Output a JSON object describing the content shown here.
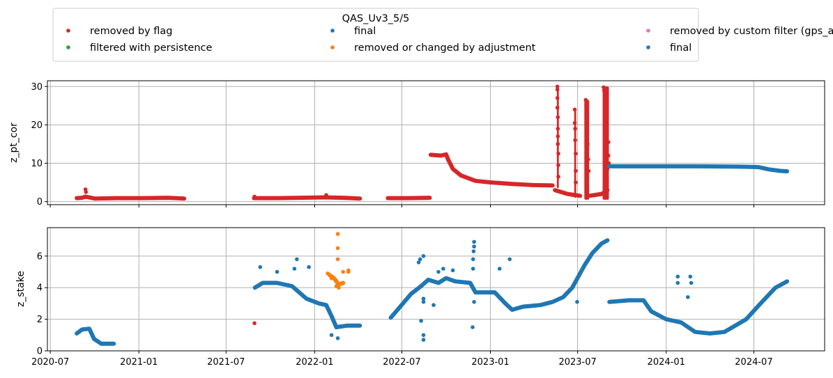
{
  "chart_data": {
    "type": "scatter",
    "legend": {
      "title": "QAS_Uv3_5/5",
      "placement": "top-center",
      "entries": [
        {
          "label": "removed by flag",
          "color": "#d62728"
        },
        {
          "label": "filtered with persistence",
          "color": "#2ca02c"
        },
        {
          "label": "final",
          "color": "#1f77b4"
        },
        {
          "label": "removed or changed by adjustment",
          "color": "#ff7f0e"
        },
        {
          "label": "removed by custom filter (gps_alt, tilt or rot)",
          "color": "#e377c2"
        },
        {
          "label": "final",
          "color": "#1f77b4"
        }
      ]
    },
    "x_axis": {
      "type": "date",
      "range": [
        "2020-06-25",
        "2024-11-25"
      ],
      "ticks": [
        "2020-07",
        "2021-01",
        "2021-07",
        "2022-01",
        "2022-07",
        "2023-01",
        "2023-07",
        "2024-01",
        "2024-07"
      ],
      "grid": true
    },
    "panels": [
      {
        "ylabel": "z_pt_cor",
        "ylim": [
          -0.8,
          31.5
        ],
        "yticks": [
          "0",
          "10",
          "20",
          "30"
        ],
        "grid": true,
        "series": [
          {
            "label_ref": "removed by flag",
            "color": "#d62728",
            "segments": [
              [
                [
                  "2020-08-25",
                  0.9
                ],
                [
                  "2020-09-05",
                  1.0
                ],
                [
                  "2020-09-12",
                  1.3
                ],
                [
                  "2020-10-01",
                  0.8
                ],
                [
                  "2020-11-15",
                  0.9
                ],
                [
                  "2021-01-10",
                  0.9
                ],
                [
                  "2021-03-01",
                  1.0
                ],
                [
                  "2021-04-05",
                  0.8
                ]
              ],
              [
                [
                  "2021-08-28",
                  0.9
                ],
                [
                  "2021-10-15",
                  0.9
                ],
                [
                  "2021-12-01",
                  1.0
                ],
                [
                  "2022-01-20",
                  1.1
                ],
                [
                  "2022-03-01",
                  1.0
                ],
                [
                  "2022-04-05",
                  0.8
                ]
              ],
              [
                [
                  "2022-06-02",
                  0.9
                ],
                [
                  "2022-07-15",
                  0.9
                ],
                [
                  "2022-08-28",
                  1.0
                ]
              ],
              [
                [
                  "2022-08-30",
                  12.2
                ],
                [
                  "2022-09-20",
                  12.0
                ],
                [
                  "2022-10-01",
                  12.3
                ],
                [
                  "2022-10-05",
                  11.0
                ],
                [
                  "2022-10-15",
                  8.5
                ],
                [
                  "2022-11-01",
                  6.8
                ],
                [
                  "2022-12-01",
                  5.4
                ],
                [
                  "2023-01-01",
                  5.0
                ],
                [
                  "2023-02-15",
                  4.6
                ],
                [
                  "2023-04-01",
                  4.3
                ],
                [
                  "2023-05-10",
                  4.2
                ]
              ],
              [
                [
                  "2023-05-15",
                  3.0
                ],
                [
                  "2023-06-10",
                  2.0
                ],
                [
                  "2023-07-06",
                  1.5
                ]
              ],
              [
                [
                  "2023-07-25",
                  1.5
                ],
                [
                  "2023-08-20",
                  2.0
                ],
                [
                  "2023-09-01",
                  3.0
                ]
              ]
            ],
            "isolated": [
              [
                "2020-09-12",
                3.2
              ],
              [
                "2020-09-13",
                2.5
              ],
              [
                "2021-08-29",
                1.3
              ],
              [
                "2022-01-25",
                1.7
              ],
              [
                "2023-05-20",
                30.0
              ],
              [
                "2023-05-20",
                29.2
              ],
              [
                "2023-05-20",
                27.0
              ],
              [
                "2023-05-20",
                24.5
              ],
              [
                "2023-05-21",
                22.0
              ],
              [
                "2023-05-21",
                19.0
              ],
              [
                "2023-05-21",
                17.0
              ],
              [
                "2023-05-21",
                15.0
              ],
              [
                "2023-05-22",
                12.5
              ],
              [
                "2023-05-22",
                9.5
              ],
              [
                "2023-05-22",
                6.5
              ],
              [
                "2023-06-25",
                24.0
              ],
              [
                "2023-06-25",
                20.5
              ],
              [
                "2023-06-26",
                19.0
              ],
              [
                "2023-06-26",
                16.0
              ],
              [
                "2023-06-27",
                12.5
              ],
              [
                "2023-06-27",
                8.0
              ],
              [
                "2023-06-27",
                5.0
              ],
              [
                "2023-07-18",
                26.5
              ],
              [
                "2023-07-19",
                25.0
              ],
              [
                "2023-07-20",
                22.0
              ],
              [
                "2023-07-21",
                20.0
              ],
              [
                "2023-07-22",
                15.0
              ],
              [
                "2023-07-23",
                11.0
              ],
              [
                "2023-07-24",
                8.0
              ],
              [
                "2023-08-24",
                29.8
              ],
              [
                "2023-08-25",
                29.0
              ],
              [
                "2023-08-26",
                27.5
              ],
              [
                "2023-08-27",
                25.5
              ],
              [
                "2023-08-28",
                23.0
              ],
              [
                "2023-08-29",
                21.0
              ],
              [
                "2023-08-30",
                18.0
              ],
              [
                "2023-08-31",
                15.5
              ],
              [
                "2023-09-01",
                12.0
              ],
              [
                "2023-09-01",
                8.5
              ],
              [
                "2023-09-03",
                15.5
              ],
              [
                "2023-09-03",
                12.0
              ],
              [
                "2023-09-04",
                10.0
              ]
            ],
            "bands": [
              {
                "x_start": "2023-05-19",
                "x_end": "2023-05-23",
                "y_min": 3.5,
                "y_max": 30.0
              },
              {
                "x_start": "2023-06-24",
                "x_end": "2023-06-28",
                "y_min": 1.0,
                "y_max": 24.0
              },
              {
                "x_start": "2023-07-15",
                "x_end": "2023-07-25",
                "y_min": 0.5,
                "y_max": 26.5
              },
              {
                "x_start": "2023-08-22",
                "x_end": "2023-09-04",
                "y_min": 0.5,
                "y_max": 30.0
              }
            ]
          },
          {
            "label_ref": "final",
            "color": "#1f77b4",
            "segments": [
              [
                [
                  "2023-09-04",
                  9.2
                ],
                [
                  "2023-12-01",
                  9.2
                ],
                [
                  "2024-03-01",
                  9.2
                ],
                [
                  "2024-06-01",
                  9.1
                ],
                [
                  "2024-07-10",
                  9.0
                ],
                [
                  "2024-08-01",
                  8.4
                ],
                [
                  "2024-08-25",
                  8.0
                ],
                [
                  "2024-09-08",
                  7.9
                ]
              ]
            ]
          }
        ]
      },
      {
        "ylabel": "z_stake",
        "ylim": [
          0,
          7.8
        ],
        "yticks": [
          "0",
          "2",
          "4",
          "6"
        ],
        "grid": true,
        "series": [
          {
            "label_ref": "final",
            "color": "#1f77b4",
            "segments": [
              [
                [
                  "2020-08-25",
                  1.1
                ],
                [
                  "2020-09-05",
                  1.35
                ],
                [
                  "2020-09-20",
                  1.4
                ],
                [
                  "2020-09-30",
                  0.75
                ],
                [
                  "2020-10-15",
                  0.45
                ],
                [
                  "2020-11-10",
                  0.45
                ]
              ],
              [
                [
                  "2021-08-30",
                  4.0
                ],
                [
                  "2021-09-15",
                  4.3
                ],
                [
                  "2021-10-15",
                  4.3
                ],
                [
                  "2021-11-15",
                  4.1
                ],
                [
                  "2021-12-15",
                  3.3
                ],
                [
                  "2022-01-10",
                  3.0
                ],
                [
                  "2022-01-25",
                  2.9
                ],
                [
                  "2022-02-05",
                  2.2
                ],
                [
                  "2022-02-15",
                  1.5
                ],
                [
                  "2022-03-10",
                  1.6
                ],
                [
                  "2022-04-05",
                  1.6
                ]
              ],
              [
                [
                  "2022-06-08",
                  2.1
                ],
                [
                  "2022-06-25",
                  2.7
                ],
                [
                  "2022-07-20",
                  3.6
                ],
                [
                  "2022-08-10",
                  4.1
                ],
                [
                  "2022-08-25",
                  4.5
                ],
                [
                  "2022-09-15",
                  4.3
                ],
                [
                  "2022-10-01",
                  4.6
                ],
                [
                  "2022-10-20",
                  4.4
                ],
                [
                  "2022-11-20",
                  4.3
                ],
                [
                  "2022-12-01",
                  3.7
                ],
                [
                  "2023-01-10",
                  3.7
                ],
                [
                  "2023-02-01",
                  3.0
                ],
                [
                  "2023-02-15",
                  2.6
                ],
                [
                  "2023-03-10",
                  2.8
                ],
                [
                  "2023-04-15",
                  2.9
                ],
                [
                  "2023-05-10",
                  3.1
                ],
                [
                  "2023-06-01",
                  3.4
                ],
                [
                  "2023-06-20",
                  4.0
                ],
                [
                  "2023-07-15",
                  5.4
                ],
                [
                  "2023-08-01",
                  6.2
                ],
                [
                  "2023-08-20",
                  6.8
                ],
                [
                  "2023-09-01",
                  7.0
                ]
              ],
              [
                [
                  "2023-09-05",
                  3.1
                ],
                [
                  "2023-10-15",
                  3.2
                ],
                [
                  "2023-11-15",
                  3.2
                ],
                [
                  "2023-12-01",
                  2.5
                ],
                [
                  "2024-01-01",
                  2.0
                ],
                [
                  "2024-02-01",
                  1.8
                ],
                [
                  "2024-03-01",
                  1.2
                ],
                [
                  "2024-04-01",
                  1.1
                ],
                [
                  "2024-05-01",
                  1.2
                ],
                [
                  "2024-06-15",
                  2.0
                ],
                [
                  "2024-07-15",
                  3.0
                ],
                [
                  "2024-08-15",
                  4.0
                ],
                [
                  "2024-09-08",
                  4.4
                ]
              ]
            ],
            "isolated": [
              [
                "2021-11-25",
                5.8
              ],
              [
                "2021-11-20",
                5.2
              ],
              [
                "2021-10-15",
                5.0
              ],
              [
                "2021-09-10",
                5.3
              ],
              [
                "2021-12-20",
                5.3
              ],
              [
                "2022-02-05",
                1.0
              ],
              [
                "2022-02-18",
                0.8
              ],
              [
                "2022-08-08",
                5.8
              ],
              [
                "2022-08-15",
                6.0
              ],
              [
                "2022-08-05",
                5.6
              ],
              [
                "2022-09-25",
                5.2
              ],
              [
                "2022-09-15",
                5.0
              ],
              [
                "2022-10-15",
                5.1
              ],
              [
                "2022-08-15",
                3.3
              ],
              [
                "2022-08-15",
                3.1
              ],
              [
                "2022-08-10",
                1.9
              ],
              [
                "2022-08-15",
                1.0
              ],
              [
                "2022-08-15",
                0.7
              ],
              [
                "2022-09-05",
                2.9
              ],
              [
                "2022-11-28",
                6.9
              ],
              [
                "2022-11-28",
                6.6
              ],
              [
                "2022-11-27",
                6.3
              ],
              [
                "2022-11-26",
                5.8
              ],
              [
                "2022-11-26",
                5.2
              ],
              [
                "2022-11-25",
                1.5
              ],
              [
                "2022-11-28",
                3.1
              ],
              [
                "2023-01-20",
                5.2
              ],
              [
                "2023-02-10",
                5.8
              ],
              [
                "2023-06-30",
                3.1
              ],
              [
                "2024-01-25",
                4.7
              ],
              [
                "2024-01-25",
                4.3
              ],
              [
                "2024-02-20",
                4.7
              ],
              [
                "2024-02-22",
                4.3
              ],
              [
                "2024-02-15",
                3.4
              ]
            ]
          },
          {
            "label_ref": "removed by flag",
            "color": "#d62728",
            "isolated": [
              [
                "2021-08-29",
                1.75
              ]
            ]
          },
          {
            "label_ref": "removed or changed by adjustment",
            "color": "#ff7f0e",
            "segments": [
              [
                [
                  "2022-02-01",
                  4.8
                ],
                [
                  "2022-02-10",
                  4.6
                ],
                [
                  "2022-02-20",
                  4.2
                ],
                [
                  "2022-03-01",
                  4.3
                ]
              ]
            ],
            "isolated": [
              [
                "2022-02-18",
                7.4
              ],
              [
                "2022-02-18",
                6.5
              ],
              [
                "2022-02-18",
                5.8
              ],
              [
                "2022-03-12",
                5.1
              ],
              [
                "2022-03-12",
                5.0
              ],
              [
                "2022-01-28",
                4.9
              ],
              [
                "2022-02-05",
                4.6
              ],
              [
                "2022-02-15",
                4.1
              ],
              [
                "2022-02-20",
                4.0
              ],
              [
                "2022-03-01",
                5.0
              ]
            ]
          }
        ]
      }
    ]
  }
}
